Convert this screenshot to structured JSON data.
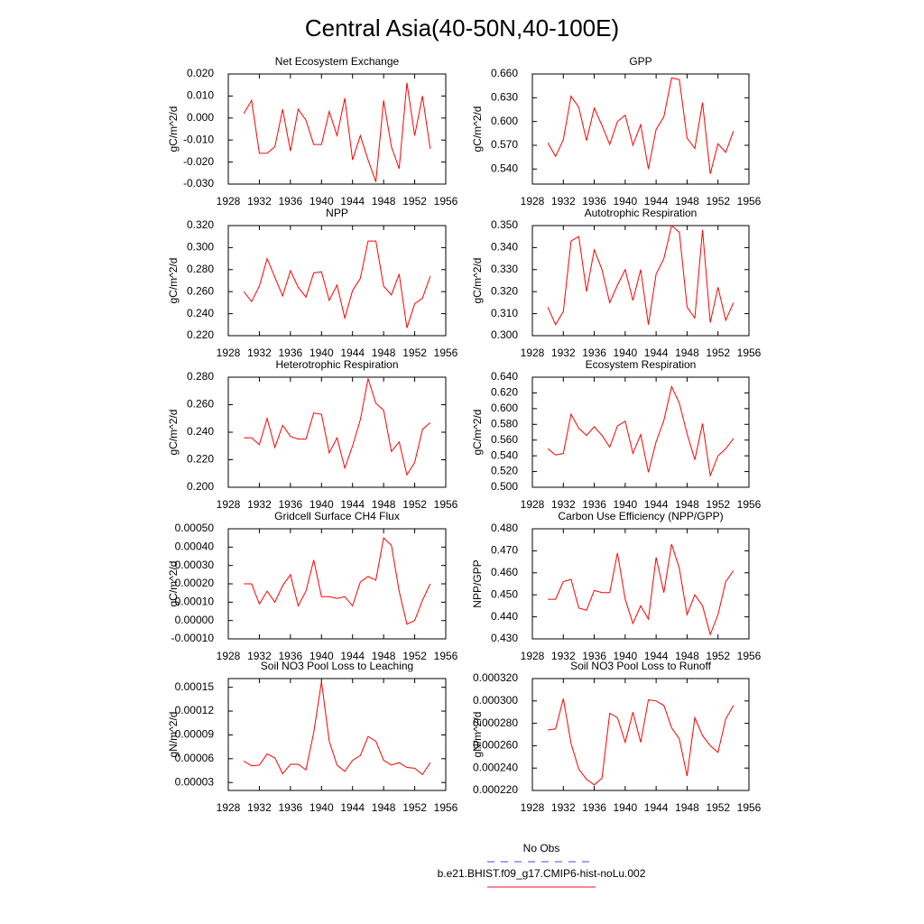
{
  "title": "Central Asia(40-50N,40-100E)",
  "legend": [
    {
      "name": "No Obs",
      "color": "#4a4ad0",
      "dashed": true
    },
    {
      "name": "b.e21.BHIST.f09_g17.CMIP6-hist-noLu.002",
      "color": "#e8101a",
      "dashed": false
    }
  ],
  "chart_data": [
    {
      "type": "line",
      "title": "Net Ecosystem Exchange",
      "ylabel": "gC/m^2/d",
      "color": "#ff0000",
      "x": [
        1930,
        1931,
        1932,
        1933,
        1934,
        1935,
        1936,
        1937,
        1938,
        1939,
        1940,
        1941,
        1942,
        1943,
        1944,
        1945,
        1946,
        1947,
        1948,
        1949,
        1950,
        1951,
        1952,
        1953,
        1954
      ],
      "values": [
        0.002,
        0.008,
        -0.016,
        -0.016,
        -0.013,
        0.004,
        -0.015,
        0.004,
        -0.001,
        -0.012,
        -0.012,
        0.003,
        -0.008,
        0.009,
        -0.019,
        -0.008,
        -0.019,
        -0.029,
        0.008,
        -0.013,
        -0.023,
        0.016,
        -0.008,
        0.01,
        -0.014
      ],
      "xlim": [
        1928,
        1956
      ],
      "xticks": [
        1928,
        1932,
        1936,
        1940,
        1944,
        1948,
        1952,
        1956
      ],
      "ylim": [
        -0.03,
        0.02
      ],
      "yticks": [
        {
          "value": -0.03,
          "label": "-0.030"
        },
        {
          "value": -0.02,
          "label": "-0.020"
        },
        {
          "value": -0.01,
          "label": "-0.010"
        },
        {
          "value": 0,
          "label": "0.000"
        },
        {
          "value": 0.01,
          "label": "0.010"
        },
        {
          "value": 0.02,
          "label": "0.020"
        }
      ]
    },
    {
      "type": "line",
      "title": "GPP",
      "ylabel": "gC/m^2/d",
      "color": "#ff0000",
      "x": [
        1930,
        1931,
        1932,
        1933,
        1934,
        1935,
        1936,
        1937,
        1938,
        1939,
        1940,
        1941,
        1942,
        1943,
        1944,
        1945,
        1946,
        1947,
        1948,
        1949,
        1950,
        1951,
        1952,
        1953,
        1954
      ],
      "values": [
        0.573,
        0.556,
        0.577,
        0.632,
        0.618,
        0.576,
        0.617,
        0.595,
        0.571,
        0.6,
        0.608,
        0.57,
        0.596,
        0.54,
        0.59,
        0.606,
        0.655,
        0.653,
        0.579,
        0.566,
        0.624,
        0.534,
        0.572,
        0.561,
        0.588
      ],
      "xlim": [
        1928,
        1956
      ],
      "xticks": [
        1928,
        1932,
        1936,
        1940,
        1944,
        1948,
        1952,
        1956
      ],
      "ylim": [
        0.521,
        0.66
      ],
      "yticks": [
        {
          "value": 0.54,
          "label": "0.540"
        },
        {
          "value": 0.57,
          "label": "0.570"
        },
        {
          "value": 0.6,
          "label": "0.600"
        },
        {
          "value": 0.63,
          "label": "0.630"
        },
        {
          "value": 0.66,
          "label": "0.660"
        }
      ]
    },
    {
      "type": "line",
      "title": "NPP",
      "ylabel": "gC/m^2/d",
      "color": "#ff0000",
      "x": [
        1930,
        1931,
        1932,
        1933,
        1934,
        1935,
        1936,
        1937,
        1938,
        1939,
        1940,
        1941,
        1942,
        1943,
        1944,
        1945,
        1946,
        1947,
        1948,
        1949,
        1950,
        1951,
        1952,
        1953,
        1954
      ],
      "values": [
        0.26,
        0.251,
        0.265,
        0.29,
        0.273,
        0.256,
        0.279,
        0.264,
        0.255,
        0.277,
        0.278,
        0.252,
        0.266,
        0.236,
        0.261,
        0.272,
        0.306,
        0.306,
        0.265,
        0.257,
        0.276,
        0.227,
        0.249,
        0.254,
        0.274
      ],
      "xlim": [
        1928,
        1956
      ],
      "xticks": [
        1928,
        1932,
        1936,
        1940,
        1944,
        1948,
        1952,
        1956
      ],
      "ylim": [
        0.22,
        0.32
      ],
      "yticks": [
        {
          "value": 0.22,
          "label": "0.220"
        },
        {
          "value": 0.24,
          "label": "0.240"
        },
        {
          "value": 0.26,
          "label": "0.260"
        },
        {
          "value": 0.28,
          "label": "0.280"
        },
        {
          "value": 0.3,
          "label": "0.300"
        },
        {
          "value": 0.32,
          "label": "0.320"
        }
      ]
    },
    {
      "type": "line",
      "title": "Autotrophic Respiration",
      "ylabel": "gC/m^2/d",
      "color": "#ff0000",
      "x": [
        1930,
        1931,
        1932,
        1933,
        1934,
        1935,
        1936,
        1937,
        1938,
        1939,
        1940,
        1941,
        1942,
        1943,
        1944,
        1945,
        1946,
        1947,
        1948,
        1949,
        1950,
        1951,
        1952,
        1953,
        1954
      ],
      "values": [
        0.313,
        0.305,
        0.311,
        0.343,
        0.345,
        0.32,
        0.339,
        0.33,
        0.315,
        0.323,
        0.33,
        0.316,
        0.33,
        0.305,
        0.328,
        0.335,
        0.35,
        0.347,
        0.313,
        0.308,
        0.348,
        0.306,
        0.322,
        0.307,
        0.315
      ],
      "xlim": [
        1928,
        1956
      ],
      "xticks": [
        1928,
        1932,
        1936,
        1940,
        1944,
        1948,
        1952,
        1956
      ],
      "ylim": [
        0.3,
        0.35
      ],
      "yticks": [
        {
          "value": 0.3,
          "label": "0.300"
        },
        {
          "value": 0.31,
          "label": "0.310"
        },
        {
          "value": 0.32,
          "label": "0.320"
        },
        {
          "value": 0.33,
          "label": "0.330"
        },
        {
          "value": 0.34,
          "label": "0.340"
        },
        {
          "value": 0.35,
          "label": "0.350"
        }
      ]
    },
    {
      "type": "line",
      "title": "Heterotrophic Respiration",
      "ylabel": "gC/m^2/d",
      "color": "#ff0000",
      "x": [
        1930,
        1931,
        1932,
        1933,
        1934,
        1935,
        1936,
        1937,
        1938,
        1939,
        1940,
        1941,
        1942,
        1943,
        1944,
        1945,
        1946,
        1947,
        1948,
        1949,
        1950,
        1951,
        1952,
        1953,
        1954
      ],
      "values": [
        0.236,
        0.236,
        0.231,
        0.25,
        0.229,
        0.245,
        0.237,
        0.235,
        0.235,
        0.254,
        0.253,
        0.225,
        0.236,
        0.214,
        0.23,
        0.249,
        0.279,
        0.261,
        0.256,
        0.226,
        0.233,
        0.209,
        0.218,
        0.242,
        0.247
      ],
      "xlim": [
        1928,
        1956
      ],
      "xticks": [
        1928,
        1932,
        1936,
        1940,
        1944,
        1948,
        1952,
        1956
      ],
      "ylim": [
        0.2,
        0.28
      ],
      "yticks": [
        {
          "value": 0.2,
          "label": "0.200"
        },
        {
          "value": 0.22,
          "label": "0.220"
        },
        {
          "value": 0.24,
          "label": "0.240"
        },
        {
          "value": 0.26,
          "label": "0.260"
        },
        {
          "value": 0.28,
          "label": "0.280"
        }
      ]
    },
    {
      "type": "line",
      "title": "Ecosystem Respiration",
      "ylabel": "gC/m^2/d",
      "color": "#ff0000",
      "x": [
        1930,
        1931,
        1932,
        1933,
        1934,
        1935,
        1936,
        1937,
        1938,
        1939,
        1940,
        1941,
        1942,
        1943,
        1944,
        1945,
        1946,
        1947,
        1948,
        1949,
        1950,
        1951,
        1952,
        1953,
        1954
      ],
      "values": [
        0.549,
        0.541,
        0.543,
        0.593,
        0.575,
        0.566,
        0.577,
        0.566,
        0.551,
        0.578,
        0.584,
        0.543,
        0.567,
        0.519,
        0.558,
        0.585,
        0.628,
        0.607,
        0.568,
        0.535,
        0.581,
        0.515,
        0.54,
        0.549,
        0.562
      ],
      "xlim": [
        1928,
        1956
      ],
      "xticks": [
        1928,
        1932,
        1936,
        1940,
        1944,
        1948,
        1952,
        1956
      ],
      "ylim": [
        0.5,
        0.64
      ],
      "yticks": [
        {
          "value": 0.5,
          "label": "0.500"
        },
        {
          "value": 0.52,
          "label": "0.520"
        },
        {
          "value": 0.54,
          "label": "0.540"
        },
        {
          "value": 0.56,
          "label": "0.560"
        },
        {
          "value": 0.58,
          "label": "0.580"
        },
        {
          "value": 0.6,
          "label": "0.600"
        },
        {
          "value": 0.62,
          "label": "0.620"
        },
        {
          "value": 0.64,
          "label": "0.640"
        }
      ]
    },
    {
      "type": "line",
      "title": "Gridcell Surface CH4 Flux",
      "ylabel": "gC/m^2/d",
      "color": "#ff0000",
      "x": [
        1930,
        1931,
        1932,
        1933,
        1934,
        1935,
        1936,
        1937,
        1938,
        1939,
        1940,
        1941,
        1942,
        1943,
        1944,
        1945,
        1946,
        1947,
        1948,
        1949,
        1950,
        1951,
        1952,
        1953,
        1954
      ],
      "values": [
        0.0002,
        0.0002,
        9e-05,
        0.00016,
        0.0001,
        0.00019,
        0.00025,
        8e-05,
        0.00016,
        0.00033,
        0.00013,
        0.00013,
        0.00012,
        0.00013,
        8e-05,
        0.00021,
        0.00024,
        0.00022,
        0.00045,
        0.00041,
        0.00016,
        -2e-05,
        0.0,
        0.00011,
        0.0002
      ],
      "xlim": [
        1928,
        1956
      ],
      "xticks": [
        1928,
        1932,
        1936,
        1940,
        1944,
        1948,
        1952,
        1956
      ],
      "ylim": [
        -0.0001,
        0.0005
      ],
      "yticks": [
        {
          "value": -0.0001,
          "label": "-0.00010"
        },
        {
          "value": 0,
          "label": "0.00000"
        },
        {
          "value": 0.0001,
          "label": "0.00010"
        },
        {
          "value": 0.0002,
          "label": "0.00020"
        },
        {
          "value": 0.0003,
          "label": "0.00030"
        },
        {
          "value": 0.0004,
          "label": "0.00040"
        },
        {
          "value": 0.0005,
          "label": "0.00050"
        }
      ]
    },
    {
      "type": "line",
      "title": "Carbon Use Efficiency (NPP/GPP)",
      "ylabel": "NPP/GPP",
      "color": "#ff0000",
      "x": [
        1930,
        1931,
        1932,
        1933,
        1934,
        1935,
        1936,
        1937,
        1938,
        1939,
        1940,
        1941,
        1942,
        1943,
        1944,
        1945,
        1946,
        1947,
        1948,
        1949,
        1950,
        1951,
        1952,
        1953,
        1954
      ],
      "values": [
        0.448,
        0.448,
        0.456,
        0.457,
        0.444,
        0.443,
        0.452,
        0.451,
        0.451,
        0.469,
        0.448,
        0.437,
        0.445,
        0.439,
        0.467,
        0.451,
        0.473,
        0.462,
        0.441,
        0.45,
        0.445,
        0.432,
        0.441,
        0.456,
        0.461
      ],
      "xlim": [
        1928,
        1956
      ],
      "xticks": [
        1928,
        1932,
        1936,
        1940,
        1944,
        1948,
        1952,
        1956
      ],
      "ylim": [
        0.43,
        0.48
      ],
      "yticks": [
        {
          "value": 0.43,
          "label": "0.430"
        },
        {
          "value": 0.44,
          "label": "0.440"
        },
        {
          "value": 0.45,
          "label": "0.450"
        },
        {
          "value": 0.46,
          "label": "0.460"
        },
        {
          "value": 0.47,
          "label": "0.470"
        },
        {
          "value": 0.48,
          "label": "0.480"
        }
      ]
    },
    {
      "type": "line",
      "title": "Soil NO3 Pool Loss to Leaching",
      "ylabel": "gN/m^2/d",
      "color": "#ff0000",
      "x": [
        1930,
        1931,
        1932,
        1933,
        1934,
        1935,
        1936,
        1937,
        1938,
        1939,
        1940,
        1941,
        1942,
        1943,
        1944,
        1945,
        1946,
        1947,
        1948,
        1949,
        1950,
        1951,
        1952,
        1953,
        1954
      ],
      "values": [
        5.7e-05,
        5.1e-05,
        5.2e-05,
        6.6e-05,
        6.1e-05,
        4.1e-05,
        5.3e-05,
        5.3e-05,
        4.6e-05,
        9.3e-05,
        0.000157,
        8.2e-05,
        5.2e-05,
        4.4e-05,
        5.8e-05,
        6.4e-05,
        8.8e-05,
        8.2e-05,
        5.8e-05,
        5.2e-05,
        5.5e-05,
        4.9e-05,
        4.8e-05,
        4e-05,
        5.5e-05
      ],
      "xlim": [
        1928,
        1956
      ],
      "xticks": [
        1928,
        1932,
        1936,
        1940,
        1944,
        1948,
        1952,
        1956
      ],
      "ylim": [
        2e-05,
        0.000161
      ],
      "yticks": [
        {
          "value": 3e-05,
          "label": "0.00003"
        },
        {
          "value": 6e-05,
          "label": "0.00006"
        },
        {
          "value": 9e-05,
          "label": "0.00009"
        },
        {
          "value": 0.00012,
          "label": "0.00012"
        },
        {
          "value": 0.00015,
          "label": "0.00015"
        }
      ]
    },
    {
      "type": "line",
      "title": "Soil NO3 Pool Loss to Runoff",
      "ylabel": "gN/m^2/d",
      "color": "#ff0000",
      "x": [
        1930,
        1931,
        1932,
        1933,
        1934,
        1935,
        1936,
        1937,
        1938,
        1939,
        1940,
        1941,
        1942,
        1943,
        1944,
        1945,
        1946,
        1947,
        1948,
        1949,
        1950,
        1951,
        1952,
        1953,
        1954
      ],
      "values": [
        0.000274,
        0.000275,
        0.000302,
        0.000262,
        0.000239,
        0.00023,
        0.000225,
        0.000231,
        0.000289,
        0.000285,
        0.000263,
        0.00029,
        0.000263,
        0.000301,
        0.0003,
        0.000296,
        0.000276,
        0.000266,
        0.000233,
        0.000285,
        0.000269,
        0.00026,
        0.000254,
        0.000284,
        0.000296
      ],
      "xlim": [
        1928,
        1956
      ],
      "xticks": [
        1928,
        1932,
        1936,
        1940,
        1944,
        1948,
        1952,
        1956
      ],
      "ylim": [
        0.00022,
        0.00032
      ],
      "yticks": [
        {
          "value": 0.00022,
          "label": "0.000220"
        },
        {
          "value": 0.00024,
          "label": "0.000240"
        },
        {
          "value": 0.00026,
          "label": "0.000260"
        },
        {
          "value": 0.00028,
          "label": "0.000280"
        },
        {
          "value": 0.0003,
          "label": "0.000300"
        },
        {
          "value": 0.00032,
          "label": "0.000320"
        }
      ]
    }
  ]
}
